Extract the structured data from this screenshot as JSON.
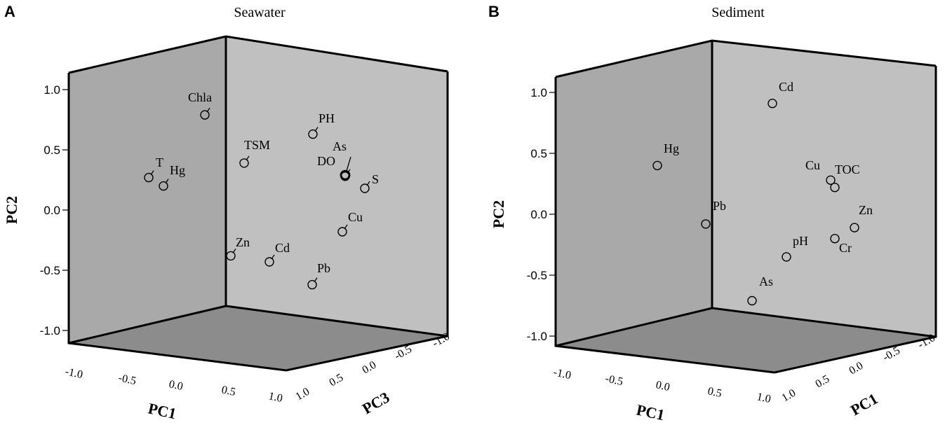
{
  "colors": {
    "left_wall": "#a9a9a9",
    "back_wall": "#c0c0c0",
    "floor": "#8c8c8c",
    "frame": "#000000",
    "marker_stroke": "#000000"
  },
  "chart_data": [
    {
      "type": "scatter",
      "panel_label": "A",
      "title": "Seawater",
      "ylabel": "PC2",
      "xlabel": "PC1",
      "zlabel": "PC3",
      "ylim": [
        -1.0,
        1.0
      ],
      "yticks": [
        "1.0",
        "0.5",
        "0.0",
        "-0.5",
        "-1.0"
      ],
      "xticks": [
        "-1.0",
        "-0.5",
        "0.0",
        "0.5",
        "1.0"
      ],
      "zticks": [
        "1.0",
        "0.5",
        "0.0",
        "-0.5",
        "-1.0"
      ],
      "points": [
        {
          "label": "Chla",
          "pc2": 0.79
        },
        {
          "label": "T",
          "pc2": 0.27
        },
        {
          "label": "Hg",
          "pc2": 0.2
        },
        {
          "label": "TSM",
          "pc2": 0.39
        },
        {
          "label": "PH",
          "pc2": 0.63
        },
        {
          "label": "DO",
          "pc2": 0.28
        },
        {
          "label": "As",
          "pc2": 0.29
        },
        {
          "label": "S",
          "pc2": 0.18
        },
        {
          "label": "Cu",
          "pc2": -0.18
        },
        {
          "label": "Zn",
          "pc2": -0.38
        },
        {
          "label": "Cd",
          "pc2": -0.43
        },
        {
          "label": "Pb",
          "pc2": -0.62
        }
      ]
    },
    {
      "type": "scatter",
      "panel_label": "B",
      "title": "Sediment",
      "ylabel": "PC2",
      "xlabel": "PC1",
      "zlabel": "PC1",
      "ylim": [
        -1.0,
        1.0
      ],
      "yticks": [
        "1.0",
        "0.5",
        "0.0",
        "-0.5",
        "-1.0"
      ],
      "xticks": [
        "-1.0",
        "-0.5",
        "0.0",
        "0.5",
        "1.0"
      ],
      "zticks": [
        "1.0",
        "0.5",
        "0.0",
        "-0.5",
        "-1.0"
      ],
      "points": [
        {
          "label": "Cd",
          "pc2": 0.91
        },
        {
          "label": "Hg",
          "pc2": 0.4
        },
        {
          "label": "Cu",
          "pc2": 0.28
        },
        {
          "label": "TOC",
          "pc2": 0.22
        },
        {
          "label": "Pb",
          "pc2": -0.08
        },
        {
          "label": "Zn",
          "pc2": -0.11
        },
        {
          "label": "Cr",
          "pc2": -0.2
        },
        {
          "label": "pH",
          "pc2": -0.35
        },
        {
          "label": "As",
          "pc2": -0.71
        }
      ]
    }
  ]
}
